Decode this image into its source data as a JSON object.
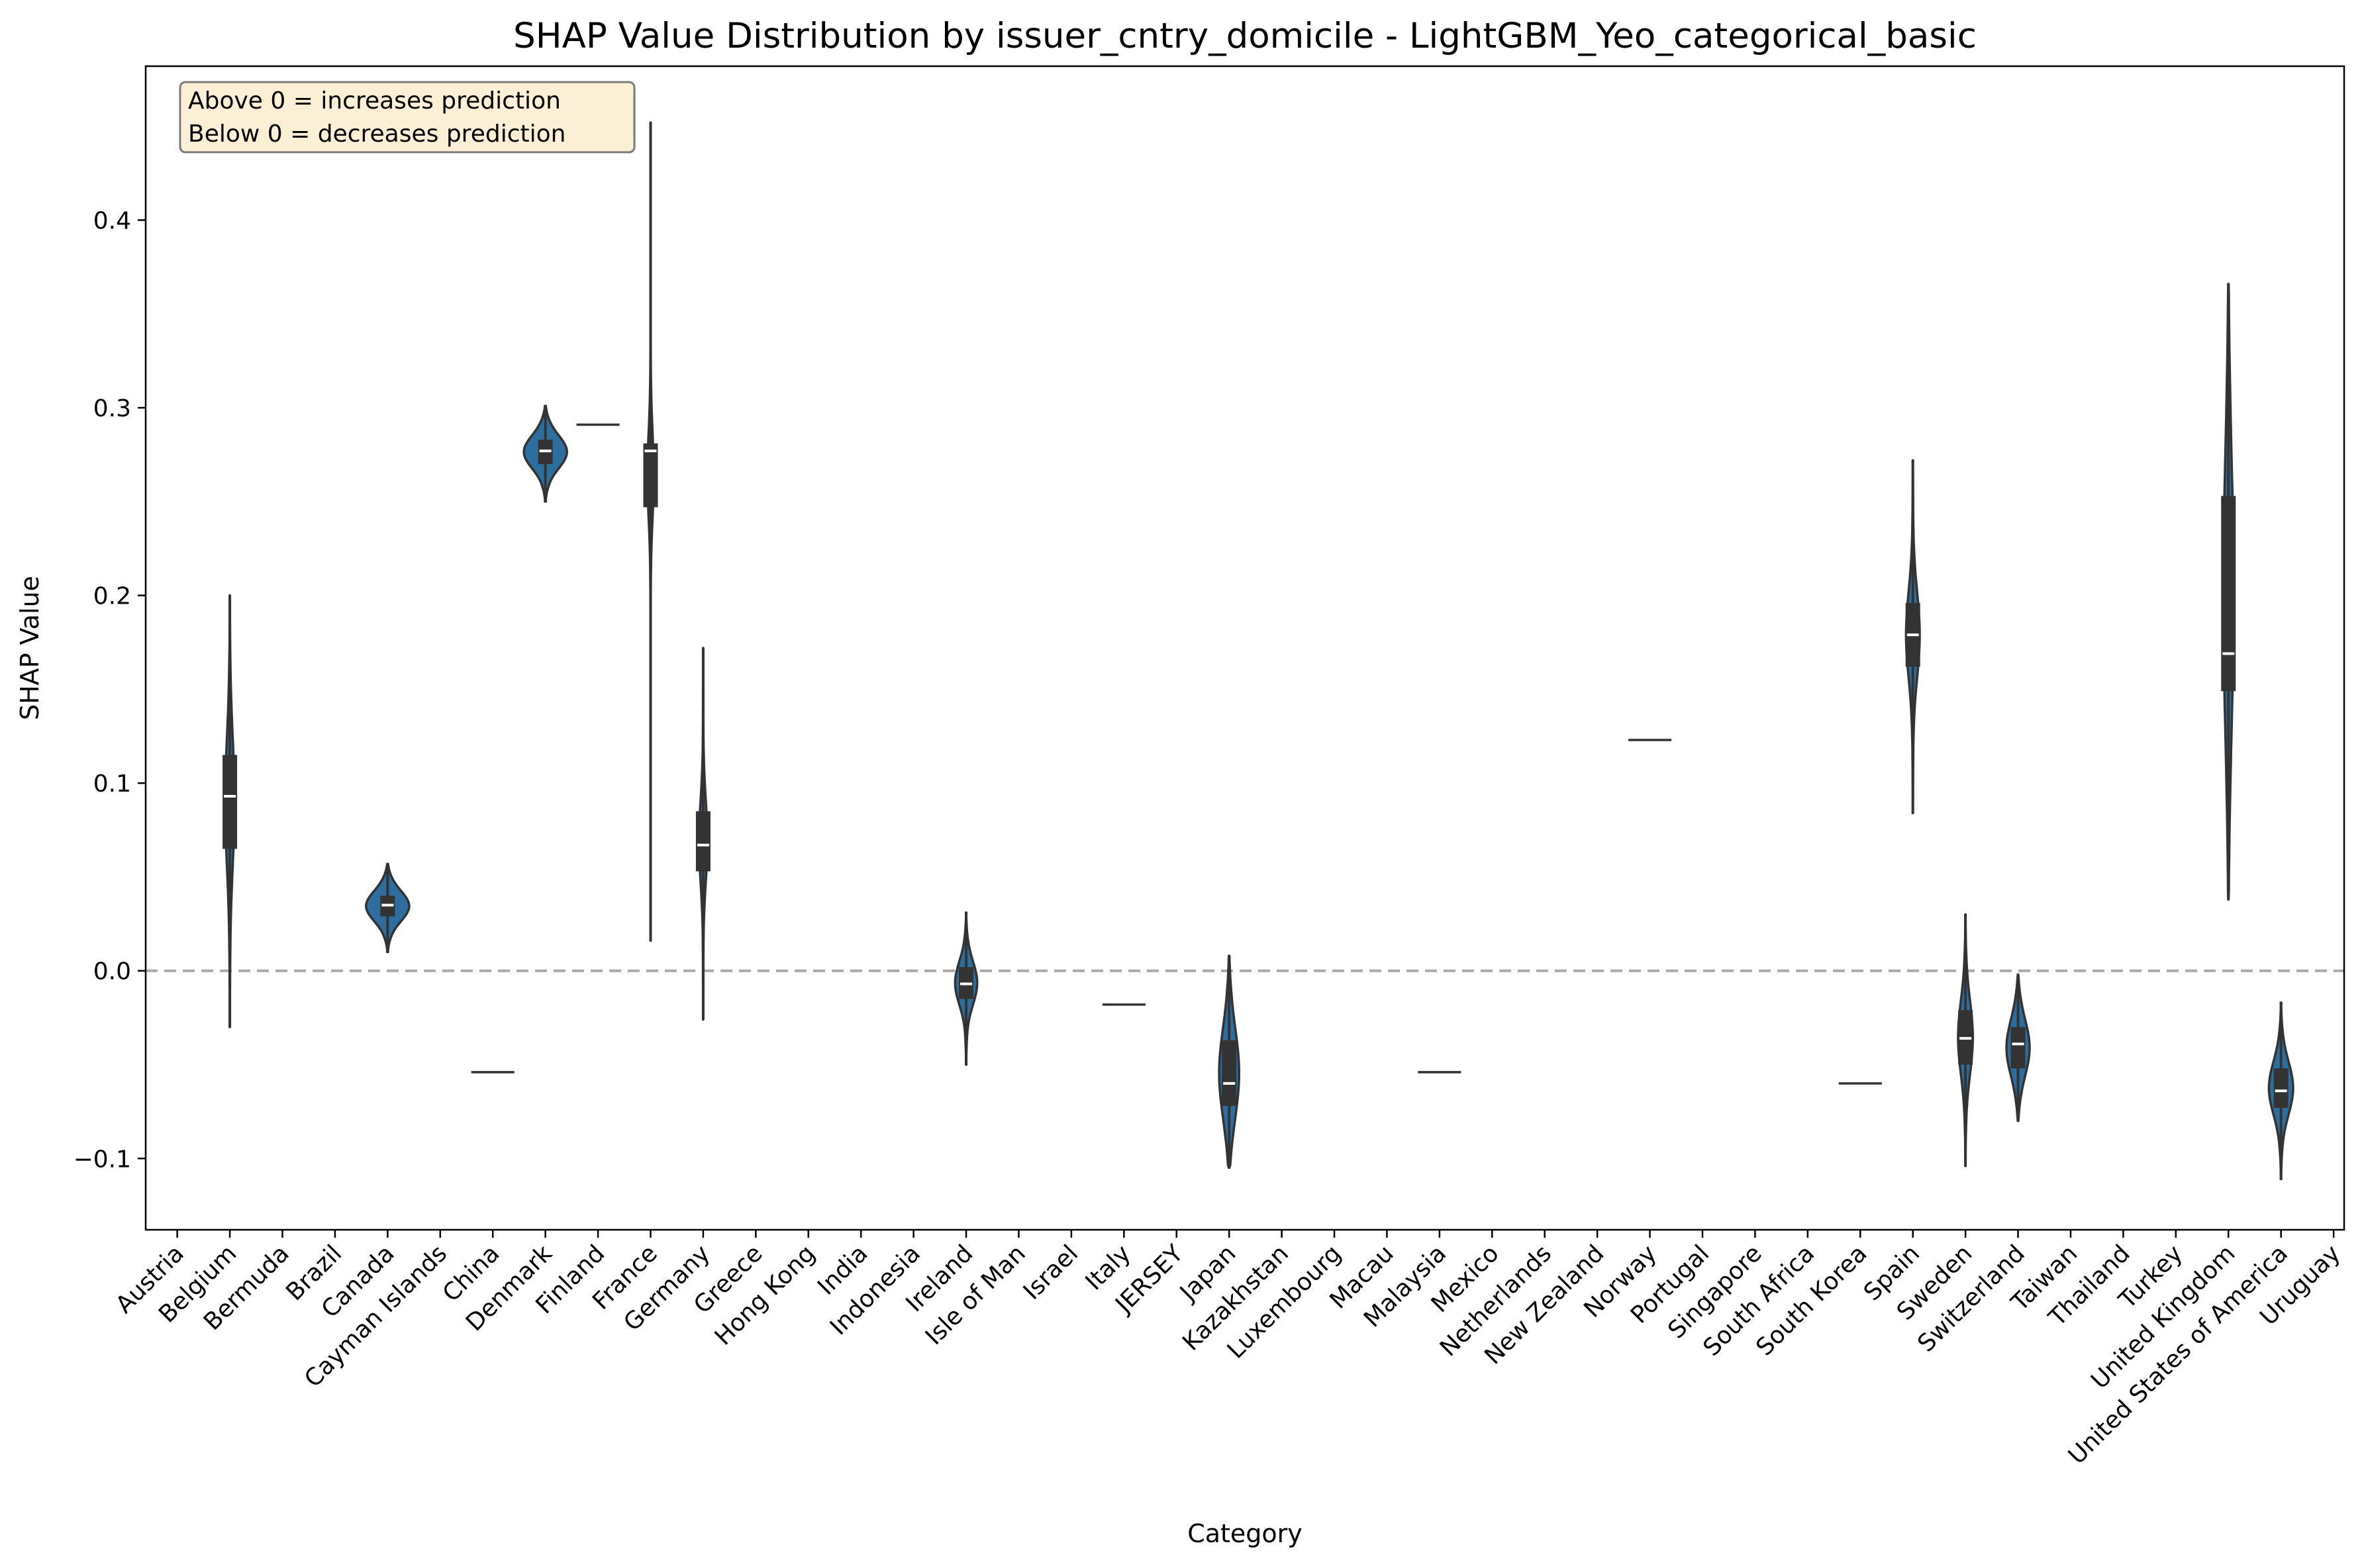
{
  "chart_data": {
    "type": "violin",
    "title": "SHAP Value Distribution by issuer_cntry_domicile - LightGBM_Yeo_categorical_basic",
    "xlabel": "Category",
    "ylabel": "SHAP Value",
    "ylim": [
      -0.138,
      0.482
    ],
    "yticks": [
      -0.1,
      0.0,
      0.1,
      0.2,
      0.3,
      0.4
    ],
    "ytick_labels": [
      "−0.1",
      "0.0",
      "0.1",
      "0.2",
      "0.3",
      "0.4"
    ],
    "reference_line": {
      "y": 0.0,
      "style": "dashed",
      "color": "#aaaaaa"
    },
    "annotation": [
      "Above 0 = increases prediction",
      "Below 0 = decreases prediction"
    ],
    "fill_color": "#2e6e9e",
    "categories": [
      "Austria",
      "Belgium",
      "Bermuda",
      "Brazil",
      "Canada",
      "Cayman Islands",
      "China",
      "Denmark",
      "Finland",
      "France",
      "Germany",
      "Greece",
      "Hong Kong",
      "India",
      "Indonesia",
      "Ireland",
      "Isle of Man",
      "Israel",
      "Italy",
      "JERSEY",
      "Japan",
      "Kazakhstan",
      "Luxembourg",
      "Macau",
      "Malaysia",
      "Mexico",
      "Netherlands",
      "New Zealand",
      "Norway",
      "Portugal",
      "Singapore",
      "South Africa",
      "South Korea",
      "Spain",
      "Sweden",
      "Switzerland",
      "Taiwan",
      "Thailand",
      "Turkey",
      "United Kingdom",
      "United States of America",
      "Uruguay"
    ],
    "violins": [
      {
        "position": 1,
        "min": -0.03,
        "max": 0.2,
        "q1": 0.065,
        "median": 0.093,
        "q3": 0.115,
        "width": 0.09
      },
      {
        "position": 4,
        "min": 0.01,
        "max": 0.057,
        "q1": 0.029,
        "median": 0.035,
        "q3": 0.04,
        "width": 0.41
      },
      {
        "position": 7,
        "min": 0.25,
        "max": 0.301,
        "q1": 0.27,
        "median": 0.277,
        "q3": 0.283,
        "width": 0.41
      },
      {
        "position": 9,
        "min": 0.016,
        "max": 0.452,
        "q1": 0.247,
        "median": 0.277,
        "q3": 0.281,
        "width": 0.06
      },
      {
        "position": 10,
        "min": -0.026,
        "max": 0.172,
        "q1": 0.053,
        "median": 0.067,
        "q3": 0.085,
        "width": 0.08
      },
      {
        "position": 15,
        "min": -0.05,
        "max": 0.031,
        "q1": -0.015,
        "median": -0.007,
        "q3": 0.002,
        "width": 0.21
      },
      {
        "position": 20,
        "min": -0.105,
        "max": 0.008,
        "q1": -0.072,
        "median": -0.06,
        "q3": -0.037,
        "width": 0.19
      },
      {
        "position": 33,
        "min": 0.084,
        "max": 0.272,
        "q1": 0.162,
        "median": 0.179,
        "q3": 0.196,
        "width": 0.13
      },
      {
        "position": 34,
        "min": -0.104,
        "max": 0.03,
        "q1": -0.05,
        "median": -0.036,
        "q3": -0.021,
        "width": 0.14
      },
      {
        "position": 35,
        "min": -0.08,
        "max": -0.002,
        "q1": -0.052,
        "median": -0.039,
        "q3": -0.03,
        "width": 0.22
      },
      {
        "position": 39,
        "min": 0.038,
        "max": 0.366,
        "q1": 0.149,
        "median": 0.169,
        "q3": 0.253,
        "width": 0.1
      },
      {
        "position": 40,
        "min": -0.111,
        "max": -0.017,
        "q1": -0.073,
        "median": -0.064,
        "q3": -0.052,
        "width": 0.23
      }
    ],
    "single_values": [
      {
        "position": 6,
        "value": -0.054
      },
      {
        "position": 8,
        "value": 0.291
      },
      {
        "position": 18,
        "value": -0.018
      },
      {
        "position": 24,
        "value": -0.054
      },
      {
        "position": 28,
        "value": 0.123
      },
      {
        "position": 32,
        "value": -0.06
      }
    ]
  }
}
